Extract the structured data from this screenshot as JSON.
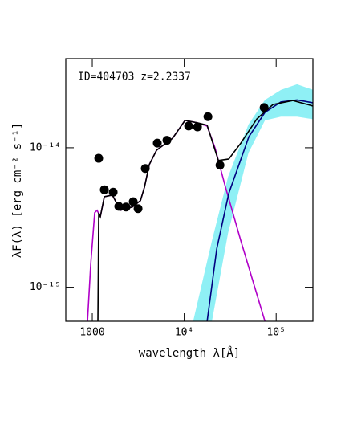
{
  "chart_data": {
    "type": "sed",
    "annotation": "ID=404703 z=2.2337",
    "x_label": "wavelength λ[Å]",
    "y_label": "λF(λ) [erg cm⁻² s⁻¹]",
    "xscale": "log",
    "yscale": "log",
    "xlim": [
      515,
      251000
    ],
    "ylim": [
      5.7e-16,
      4.35e-14
    ],
    "xticks": [
      1000,
      {
        "value": 10000,
        "label": "10⁴"
      },
      {
        "value": 100000,
        "label": "10⁵"
      }
    ],
    "yticks": [
      {
        "value": 1e-15,
        "label": "10⁻¹⁵"
      },
      {
        "value": 1e-14,
        "label": "10⁻¹⁴"
      }
    ],
    "bands": [
      {
        "color": "#8ff0f5",
        "x": [
          12500,
          20000,
          30000,
          50000,
          75500,
          112700,
          168700,
          252000
        ],
        "upper": [
          5.7e-16,
          2.15e-15,
          6.2e-15,
          1.47e-14,
          2.2e-14,
          2.6e-14,
          2.85e-14,
          2.6e-14
        ],
        "lower": [
          5.7e-16,
          5.7e-16,
          2.45e-15,
          9.2e-15,
          1.57e-14,
          1.67e-14,
          1.67e-14,
          1.6e-14
        ]
      }
    ],
    "series": [
      {
        "color": "#b000c8",
        "x": [
          887,
          961,
          1062,
          1128,
          1222,
          1352,
          1652,
          2021,
          2734,
          3342,
          3698,
          4170,
          5000,
          7470,
          10200,
          13800,
          17750,
          21700,
          27600,
          41300,
          75500
        ],
        "values": [
          5.7e-16,
          1.45e-15,
          3.42e-15,
          3.56e-15,
          3.2e-15,
          4.45e-15,
          4.58e-15,
          3.56e-15,
          3.76e-15,
          4.18e-15,
          5.23e-15,
          7.57e-15,
          9.6e-15,
          1.17e-14,
          1.57e-14,
          1.51e-14,
          1.43e-14,
          9.9e-15,
          5.44e-15,
          2.15e-15,
          5.7e-16
        ]
      },
      {
        "color": "#000080",
        "x": [
          17750,
          22600,
          30500,
          50500,
          75500,
          112700,
          168700,
          252000
        ],
        "values": [
          5.7e-16,
          1.89e-15,
          4.7e-15,
          1.2e-14,
          1.79e-14,
          2.13e-14,
          2.2e-14,
          2.1e-14
        ]
      },
      {
        "color": "#000000",
        "x": [
          1151,
          1175,
          1222,
          1352,
          1652,
          2021,
          2734,
          3342,
          3698,
          4170,
          5000,
          7470,
          10200,
          13800,
          17750,
          23500,
          30500,
          41300,
          61700,
          92200,
          152000,
          252000
        ],
        "values": [
          5.7e-16,
          3.42e-15,
          3.2e-15,
          4.45e-15,
          4.58e-15,
          3.56e-15,
          3.76e-15,
          4.18e-15,
          5.23e-15,
          7.57e-15,
          9.6e-15,
          1.17e-14,
          1.57e-14,
          1.51e-14,
          1.45e-14,
          8.1e-15,
          8.3e-15,
          1.08e-14,
          1.61e-14,
          2.04e-14,
          2.18e-14,
          1.99e-14
        ]
      }
    ],
    "points": {
      "color": "#000000",
      "x": [
        1175,
        1352,
        1687,
        1941,
        2327,
        2788,
        3147,
        3770,
        5093,
        6486,
        11170,
        13930,
        18100,
        24490,
        73960
      ],
      "values": [
        8.4e-15,
        5e-15,
        4.8e-15,
        3.8e-15,
        3.76e-15,
        4.1e-15,
        3.66e-15,
        7.1e-15,
        1.08e-14,
        1.13e-14,
        1.43e-14,
        1.41e-14,
        1.67e-14,
        7.5e-15,
        1.94e-14
      ]
    }
  }
}
